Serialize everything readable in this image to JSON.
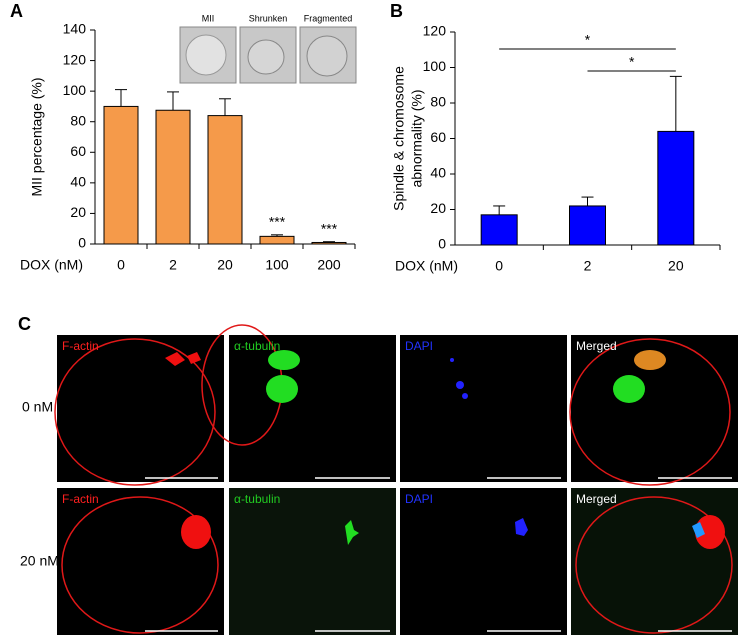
{
  "chart_data": [
    {
      "type": "bar",
      "panel": "A",
      "ylabel": [
        "MII percentage (%)"
      ],
      "xlabel": "DOX (nM)",
      "categories": [
        "0",
        "2",
        "20",
        "100",
        "200"
      ],
      "values": [
        90,
        87.5,
        84,
        5,
        1
      ],
      "errors": [
        11,
        12,
        11,
        1,
        0.5
      ],
      "significance": [
        null,
        null,
        null,
        "***",
        "***"
      ],
      "color": "#f59a4a",
      "ylim": [
        0,
        140
      ],
      "yticks": [
        0,
        20,
        40,
        60,
        80,
        100,
        120,
        140
      ],
      "inset_labels": [
        "MII",
        "Shrunken",
        "Fragmented"
      ]
    },
    {
      "type": "bar",
      "panel": "B",
      "ylabel": [
        "Spindle & chromosome",
        "abnormality (%)"
      ],
      "xlabel": "DOX (nM)",
      "categories": [
        "0",
        "2",
        "20"
      ],
      "values": [
        17,
        22,
        64
      ],
      "errors": [
        5,
        5,
        31
      ],
      "color": "#0000ff",
      "ylim": [
        0,
        120
      ],
      "yticks": [
        0,
        20,
        40,
        60,
        80,
        100,
        120
      ],
      "brackets": [
        {
          "from": "0",
          "to": "20",
          "text": "*"
        },
        {
          "from": "2",
          "to": "20",
          "text": "*"
        }
      ]
    }
  ],
  "panel_c": {
    "label": "C",
    "rows": [
      "0 nM",
      "20 nM"
    ],
    "channels": [
      "F-actin",
      "α-tubulin",
      "DAPI",
      "Merged"
    ]
  }
}
